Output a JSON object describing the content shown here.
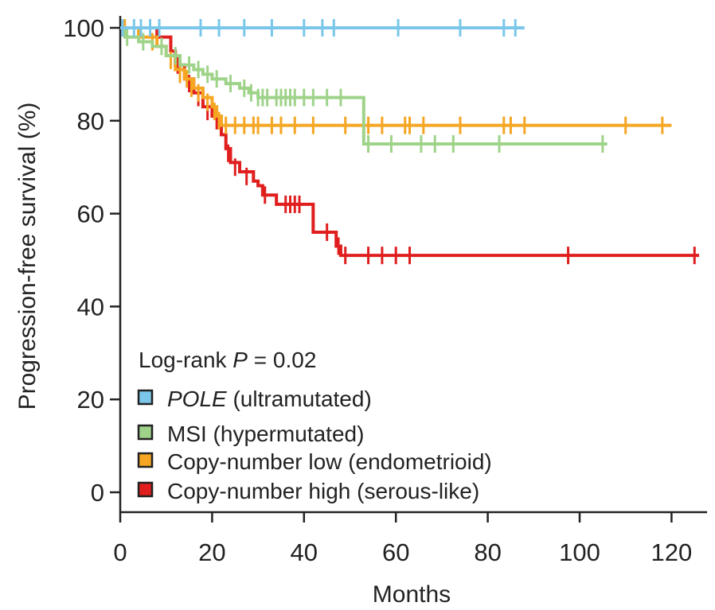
{
  "chart_data": {
    "type": "line",
    "subtype": "kaplan-meier step curves with censoring ticks",
    "title": "",
    "xlabel": "Months",
    "ylabel": "Progression-free survival (%)",
    "xlim": [
      0,
      128
    ],
    "ylim": [
      0,
      100
    ],
    "x_ticks": [
      0,
      20,
      40,
      60,
      80,
      100,
      120
    ],
    "y_ticks": [
      0,
      20,
      40,
      60,
      80,
      100
    ],
    "grid": false,
    "legend_position": "bottom-left inside plot",
    "annotation": {
      "prefix": "Log-rank ",
      "p_symbol": "P",
      "suffix": " = 0.02"
    },
    "series": [
      {
        "name_italic": "POLE",
        "name": " (ultramutated)",
        "color": "#7ac7ea",
        "steps": [
          [
            0,
            100
          ],
          [
            88,
            100
          ]
        ],
        "censored": [
          [
            0.5,
            100
          ],
          [
            3,
            100
          ],
          [
            4.5,
            100
          ],
          [
            6.5,
            100
          ],
          [
            8.5,
            100
          ],
          [
            17.5,
            100
          ],
          [
            21.5,
            100
          ],
          [
            27,
            100
          ],
          [
            33,
            100
          ],
          [
            40,
            100
          ],
          [
            44,
            100
          ],
          [
            46.5,
            100
          ],
          [
            60.5,
            100
          ],
          [
            74,
            100
          ],
          [
            83.5,
            100
          ],
          [
            86,
            100
          ]
        ]
      },
      {
        "name_italic": "",
        "name": "MSI (hypermutated)",
        "color": "#9fd38a",
        "steps": [
          [
            0,
            100
          ],
          [
            1,
            98
          ],
          [
            4,
            97
          ],
          [
            7,
            96
          ],
          [
            10,
            94
          ],
          [
            13,
            92
          ],
          [
            16,
            91
          ],
          [
            18,
            90
          ],
          [
            20,
            89
          ],
          [
            23,
            88
          ],
          [
            26,
            87
          ],
          [
            28,
            86
          ],
          [
            30,
            85
          ],
          [
            53,
            85
          ],
          [
            53,
            75
          ],
          [
            106,
            75
          ]
        ],
        "censored": [
          [
            1.5,
            98
          ],
          [
            5,
            97
          ],
          [
            9,
            96
          ],
          [
            12,
            94
          ],
          [
            15,
            92
          ],
          [
            17,
            91
          ],
          [
            19,
            90
          ],
          [
            21,
            89
          ],
          [
            24,
            88
          ],
          [
            27,
            87
          ],
          [
            28.5,
            86
          ],
          [
            30,
            85
          ],
          [
            31,
            85
          ],
          [
            32,
            85
          ],
          [
            34,
            85
          ],
          [
            35,
            85
          ],
          [
            36,
            85
          ],
          [
            37,
            85
          ],
          [
            38,
            85
          ],
          [
            40,
            85
          ],
          [
            42,
            85
          ],
          [
            45,
            85
          ],
          [
            48,
            85
          ],
          [
            54,
            75
          ],
          [
            59,
            75
          ],
          [
            65.5,
            75
          ],
          [
            68.5,
            75
          ],
          [
            72.5,
            75
          ],
          [
            82.5,
            75
          ],
          [
            105,
            75
          ]
        ]
      },
      {
        "name_italic": "",
        "name": "Copy-number low (endometrioid)",
        "color": "#f5a623",
        "steps": [
          [
            0,
            100
          ],
          [
            4,
            98
          ],
          [
            8,
            96
          ],
          [
            10,
            94
          ],
          [
            12,
            91
          ],
          [
            14,
            89
          ],
          [
            16,
            87
          ],
          [
            18,
            85
          ],
          [
            20,
            83
          ],
          [
            21,
            81
          ],
          [
            22,
            79
          ],
          [
            120,
            79
          ]
        ],
        "censored": [
          [
            1,
            100
          ],
          [
            7,
            97
          ],
          [
            11,
            93
          ],
          [
            13,
            90
          ],
          [
            14.5,
            89
          ],
          [
            15.5,
            87
          ],
          [
            17,
            86
          ],
          [
            19,
            84
          ],
          [
            20.5,
            82
          ],
          [
            21.5,
            80
          ],
          [
            23,
            79
          ],
          [
            25,
            79
          ],
          [
            27,
            79
          ],
          [
            29,
            79
          ],
          [
            30,
            79
          ],
          [
            33,
            79
          ],
          [
            35,
            79
          ],
          [
            38,
            79
          ],
          [
            42,
            79
          ],
          [
            49,
            79
          ],
          [
            54,
            79
          ],
          [
            57,
            79
          ],
          [
            62,
            79
          ],
          [
            63,
            79
          ],
          [
            66,
            79
          ],
          [
            74,
            79
          ],
          [
            83.5,
            79
          ],
          [
            85,
            79
          ],
          [
            88,
            79
          ],
          [
            110,
            79
          ],
          [
            118,
            79
          ]
        ]
      },
      {
        "name_italic": "",
        "name": "Copy-number high (serous-like)",
        "color": "#e01e1e",
        "steps": [
          [
            0,
            100
          ],
          [
            8,
            98
          ],
          [
            11,
            95
          ],
          [
            12,
            92
          ],
          [
            14,
            89
          ],
          [
            16,
            86
          ],
          [
            18,
            83
          ],
          [
            20,
            81
          ],
          [
            22,
            77
          ],
          [
            23,
            74
          ],
          [
            24,
            71
          ],
          [
            26,
            69
          ],
          [
            29,
            67
          ],
          [
            30,
            66
          ],
          [
            31,
            64
          ],
          [
            34,
            62
          ],
          [
            42,
            62
          ],
          [
            42,
            56
          ],
          [
            46,
            56
          ],
          [
            47,
            53
          ],
          [
            48,
            51
          ],
          [
            126,
            51
          ]
        ],
        "censored": [
          [
            12.5,
            92
          ],
          [
            15,
            88
          ],
          [
            17,
            85
          ],
          [
            19,
            82
          ],
          [
            21,
            80
          ],
          [
            23.5,
            73
          ],
          [
            25,
            70
          ],
          [
            27.5,
            68
          ],
          [
            31.5,
            64
          ],
          [
            36,
            62
          ],
          [
            37,
            62
          ],
          [
            38,
            62
          ],
          [
            39,
            62
          ],
          [
            45,
            56
          ],
          [
            47.5,
            53
          ],
          [
            49,
            51
          ],
          [
            54,
            51
          ],
          [
            57,
            51
          ],
          [
            60,
            51
          ],
          [
            63,
            51
          ],
          [
            97.5,
            51
          ],
          [
            125,
            51
          ]
        ]
      }
    ]
  }
}
